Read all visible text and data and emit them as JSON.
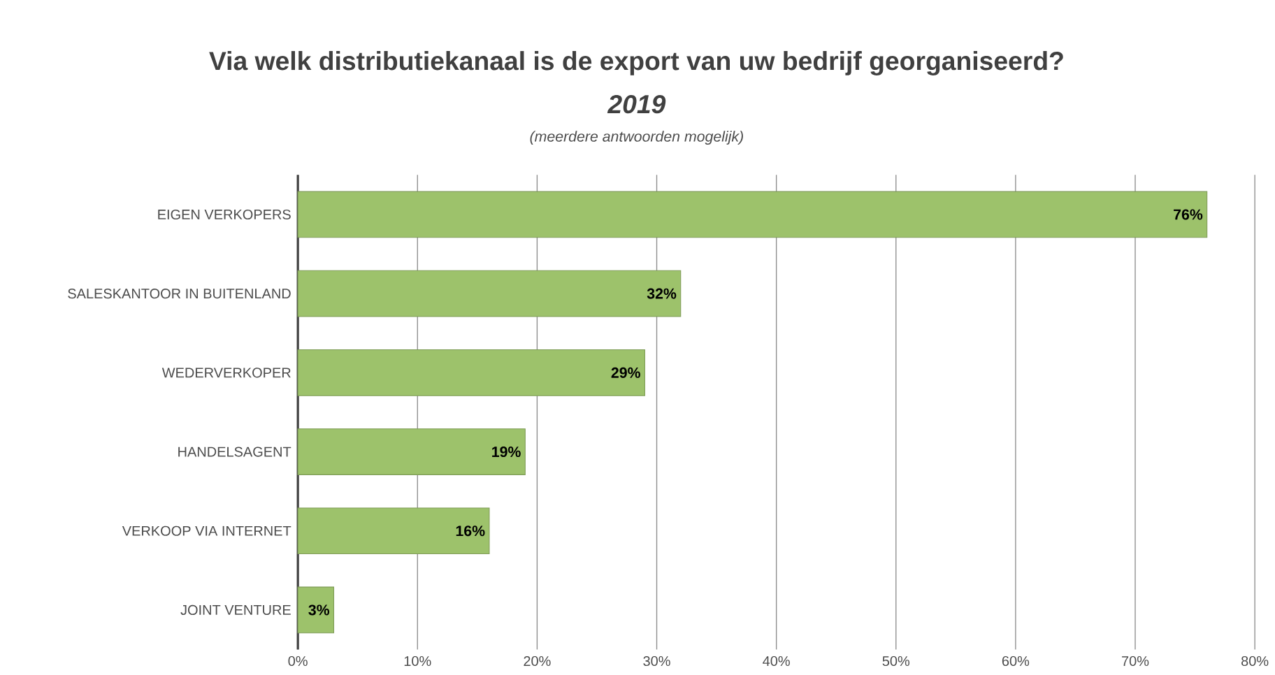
{
  "chart_data": {
    "type": "bar",
    "orientation": "horizontal",
    "title": "Via welk distributiekanaal is de export van uw bedrijf georganiseerd?",
    "subtitle": "2019",
    "annotations": [
      "(meerdere antwoorden mogelijk)"
    ],
    "categories": [
      "EIGEN VERKOPERS",
      "SALESKANTOOR IN BUITENLAND",
      "WEDERVERKOPER",
      "HANDELSAGENT",
      "VERKOOP VIA INTERNET",
      "JOINT VENTURE"
    ],
    "values": [
      76,
      32,
      29,
      19,
      16,
      3
    ],
    "value_labels": [
      "76%",
      "32%",
      "29%",
      "19%",
      "16%",
      "3%"
    ],
    "color": "#9dc26b",
    "xlim": [
      0,
      80
    ],
    "xticks": [
      {
        "value": 0,
        "label": "0%"
      },
      {
        "value": 10,
        "label": "10%"
      },
      {
        "value": 20,
        "label": "20%"
      },
      {
        "value": 30,
        "label": "30%"
      },
      {
        "value": 40,
        "label": "40%"
      },
      {
        "value": 50,
        "label": "50%"
      },
      {
        "value": 60,
        "label": "60%"
      },
      {
        "value": 70,
        "label": "70%"
      },
      {
        "value": 80,
        "label": "80%"
      }
    ],
    "grid": "x"
  }
}
